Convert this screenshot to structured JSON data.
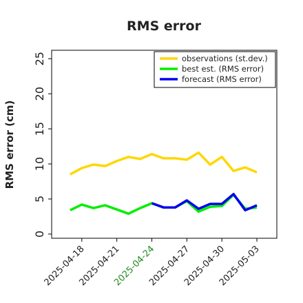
{
  "chart_data": {
    "type": "line",
    "title": "RMS error",
    "ylabel": "RMS error (cm)",
    "x": [
      "2025-04-17",
      "2025-04-18",
      "2025-04-19",
      "2025-04-20",
      "2025-04-21",
      "2025-04-22",
      "2025-04-23",
      "2025-04-24",
      "2025-04-25",
      "2025-04-26",
      "2025-04-27",
      "2025-04-28",
      "2025-04-29",
      "2025-04-30",
      "2025-05-01",
      "2025-05-02",
      "2025-05-03"
    ],
    "series": [
      {
        "name": "observations (st.dev.)",
        "color": "#ffd700",
        "values": [
          8.5,
          9.4,
          9.9,
          9.7,
          10.4,
          11.0,
          10.7,
          11.4,
          10.8,
          10.8,
          10.6,
          11.6,
          9.9,
          11.0,
          9.0,
          9.5,
          8.8
        ]
      },
      {
        "name": "best est. (RMS error)",
        "color": "#00ee00",
        "values": [
          3.4,
          4.2,
          3.7,
          4.1,
          3.5,
          2.9,
          3.7,
          4.4,
          3.8,
          3.8,
          4.7,
          3.2,
          3.9,
          4.0,
          5.6,
          3.6,
          3.8
        ]
      },
      {
        "name": "forecast (RMS error)",
        "color": "#0000ee",
        "values": [
          null,
          null,
          null,
          null,
          null,
          null,
          null,
          4.4,
          3.8,
          3.8,
          4.8,
          3.6,
          4.3,
          4.3,
          5.7,
          3.4,
          4.1
        ]
      }
    ],
    "xlim": [
      "2025-04-15T10:00",
      "2025-05-04T17:00"
    ],
    "xticks": [
      "2025-04-18",
      "2025-04-21",
      "2025-04-24",
      "2025-04-27",
      "2025-04-30",
      "2025-05-03"
    ],
    "highlight_xtick": 2,
    "highlight_color": "#228b22",
    "ylim": [
      -0.6,
      26.2
    ],
    "yticks": [
      0,
      5,
      10,
      15,
      20,
      25
    ],
    "legend": "upper right"
  }
}
